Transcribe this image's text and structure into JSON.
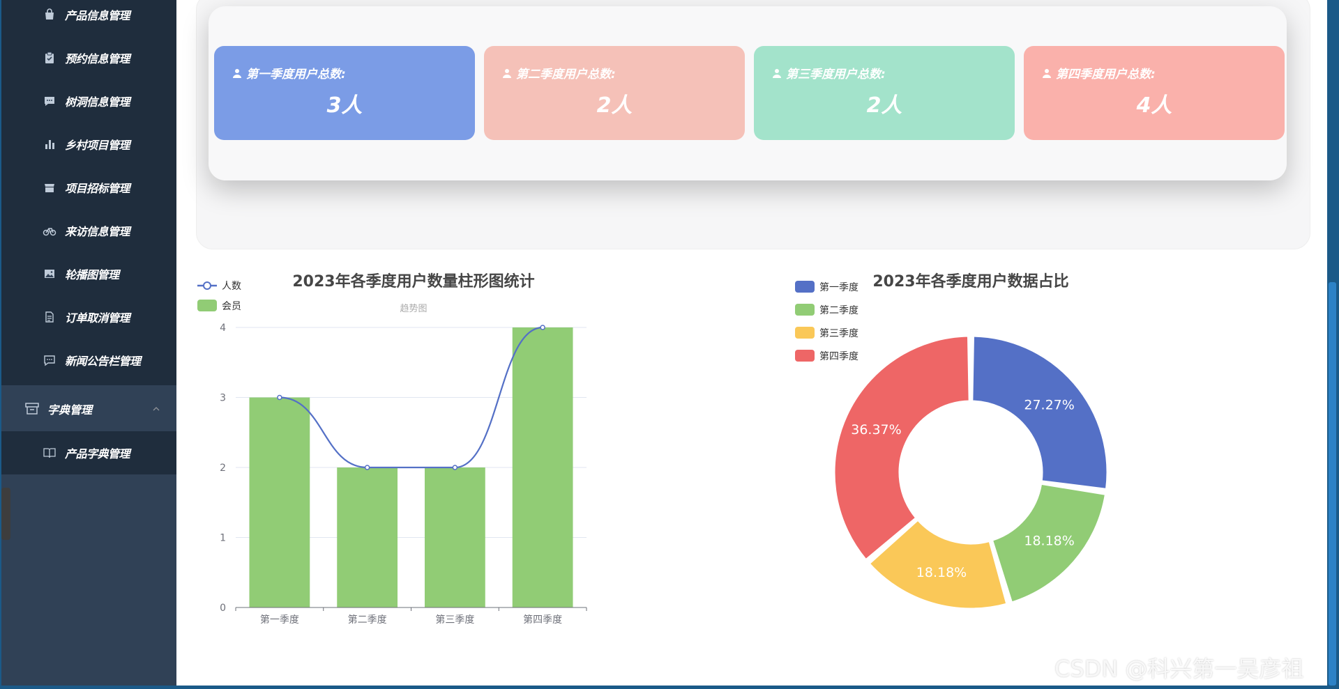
{
  "sidebar": {
    "items": [
      {
        "label": "产品信息管理",
        "icon": "shopping-bag-icon"
      },
      {
        "label": "预约信息管理",
        "icon": "clipboard-check-icon"
      },
      {
        "label": "树洞信息管理",
        "icon": "chat-icon"
      },
      {
        "label": "乡村项目管理",
        "icon": "bar-chart-icon"
      },
      {
        "label": "项目招标管理",
        "icon": "store-icon"
      },
      {
        "label": "来访信息管理",
        "icon": "bicycle-icon"
      },
      {
        "label": "轮播图管理",
        "icon": "image-icon"
      },
      {
        "label": "订单取消管理",
        "icon": "document-icon"
      },
      {
        "label": "新闻公告栏管理",
        "icon": "message-icon"
      }
    ],
    "group": {
      "label": "字典管理",
      "icon": "archive-icon"
    },
    "subitems": [
      {
        "label": "产品字典管理",
        "icon": "book-icon"
      }
    ]
  },
  "stats": {
    "cards": [
      {
        "title": "第一季度用户总数:",
        "value": "3人",
        "color": "#7b9ce6"
      },
      {
        "title": "第二季度用户总数:",
        "value": "2人",
        "color": "#f5c1b8"
      },
      {
        "title": "第三季度用户总数:",
        "value": "2人",
        "color": "#a3e3cb"
      },
      {
        "title": "第四季度用户总数:",
        "value": "4人",
        "color": "#fab1ab"
      }
    ]
  },
  "bar_chart": {
    "title": "2023年各季度用户数量柱形图统计",
    "subtitle": "趋势图"
  },
  "pie_chart": {
    "title": "2023年各季度用户数据占比"
  },
  "chart_data": [
    {
      "type": "bar",
      "title": "2023年各季度用户数量柱形图统计",
      "subtitle": "趋势图",
      "categories": [
        "第一季度",
        "第二季度",
        "第三季度",
        "第四季度"
      ],
      "series": [
        {
          "name": "人数",
          "type": "line",
          "smooth": true,
          "color": "#5470c6",
          "values": [
            3,
            2,
            2,
            4
          ]
        },
        {
          "name": "会员",
          "type": "bar",
          "color": "#91cc75",
          "values": [
            3,
            2,
            2,
            4
          ]
        }
      ],
      "ylim": [
        0,
        4
      ],
      "yticks": [
        0,
        1,
        2,
        3,
        4
      ],
      "legend": "top-left",
      "grid": true
    },
    {
      "type": "pie",
      "donut": true,
      "title": "2023年各季度用户数据占比",
      "labels": [
        "第一季度",
        "第二季度",
        "第三季度",
        "第四季度"
      ],
      "values": [
        3,
        2,
        2,
        4
      ],
      "percent_labels": [
        "27.27%",
        "18.18%",
        "18.18%",
        "36.37%"
      ],
      "colors": [
        "#5470c6",
        "#91cc75",
        "#fac858",
        "#ee6666"
      ],
      "legend": "top-left"
    }
  ],
  "watermark": {
    "text": "CSDN @科兴第一吴彦祖"
  }
}
